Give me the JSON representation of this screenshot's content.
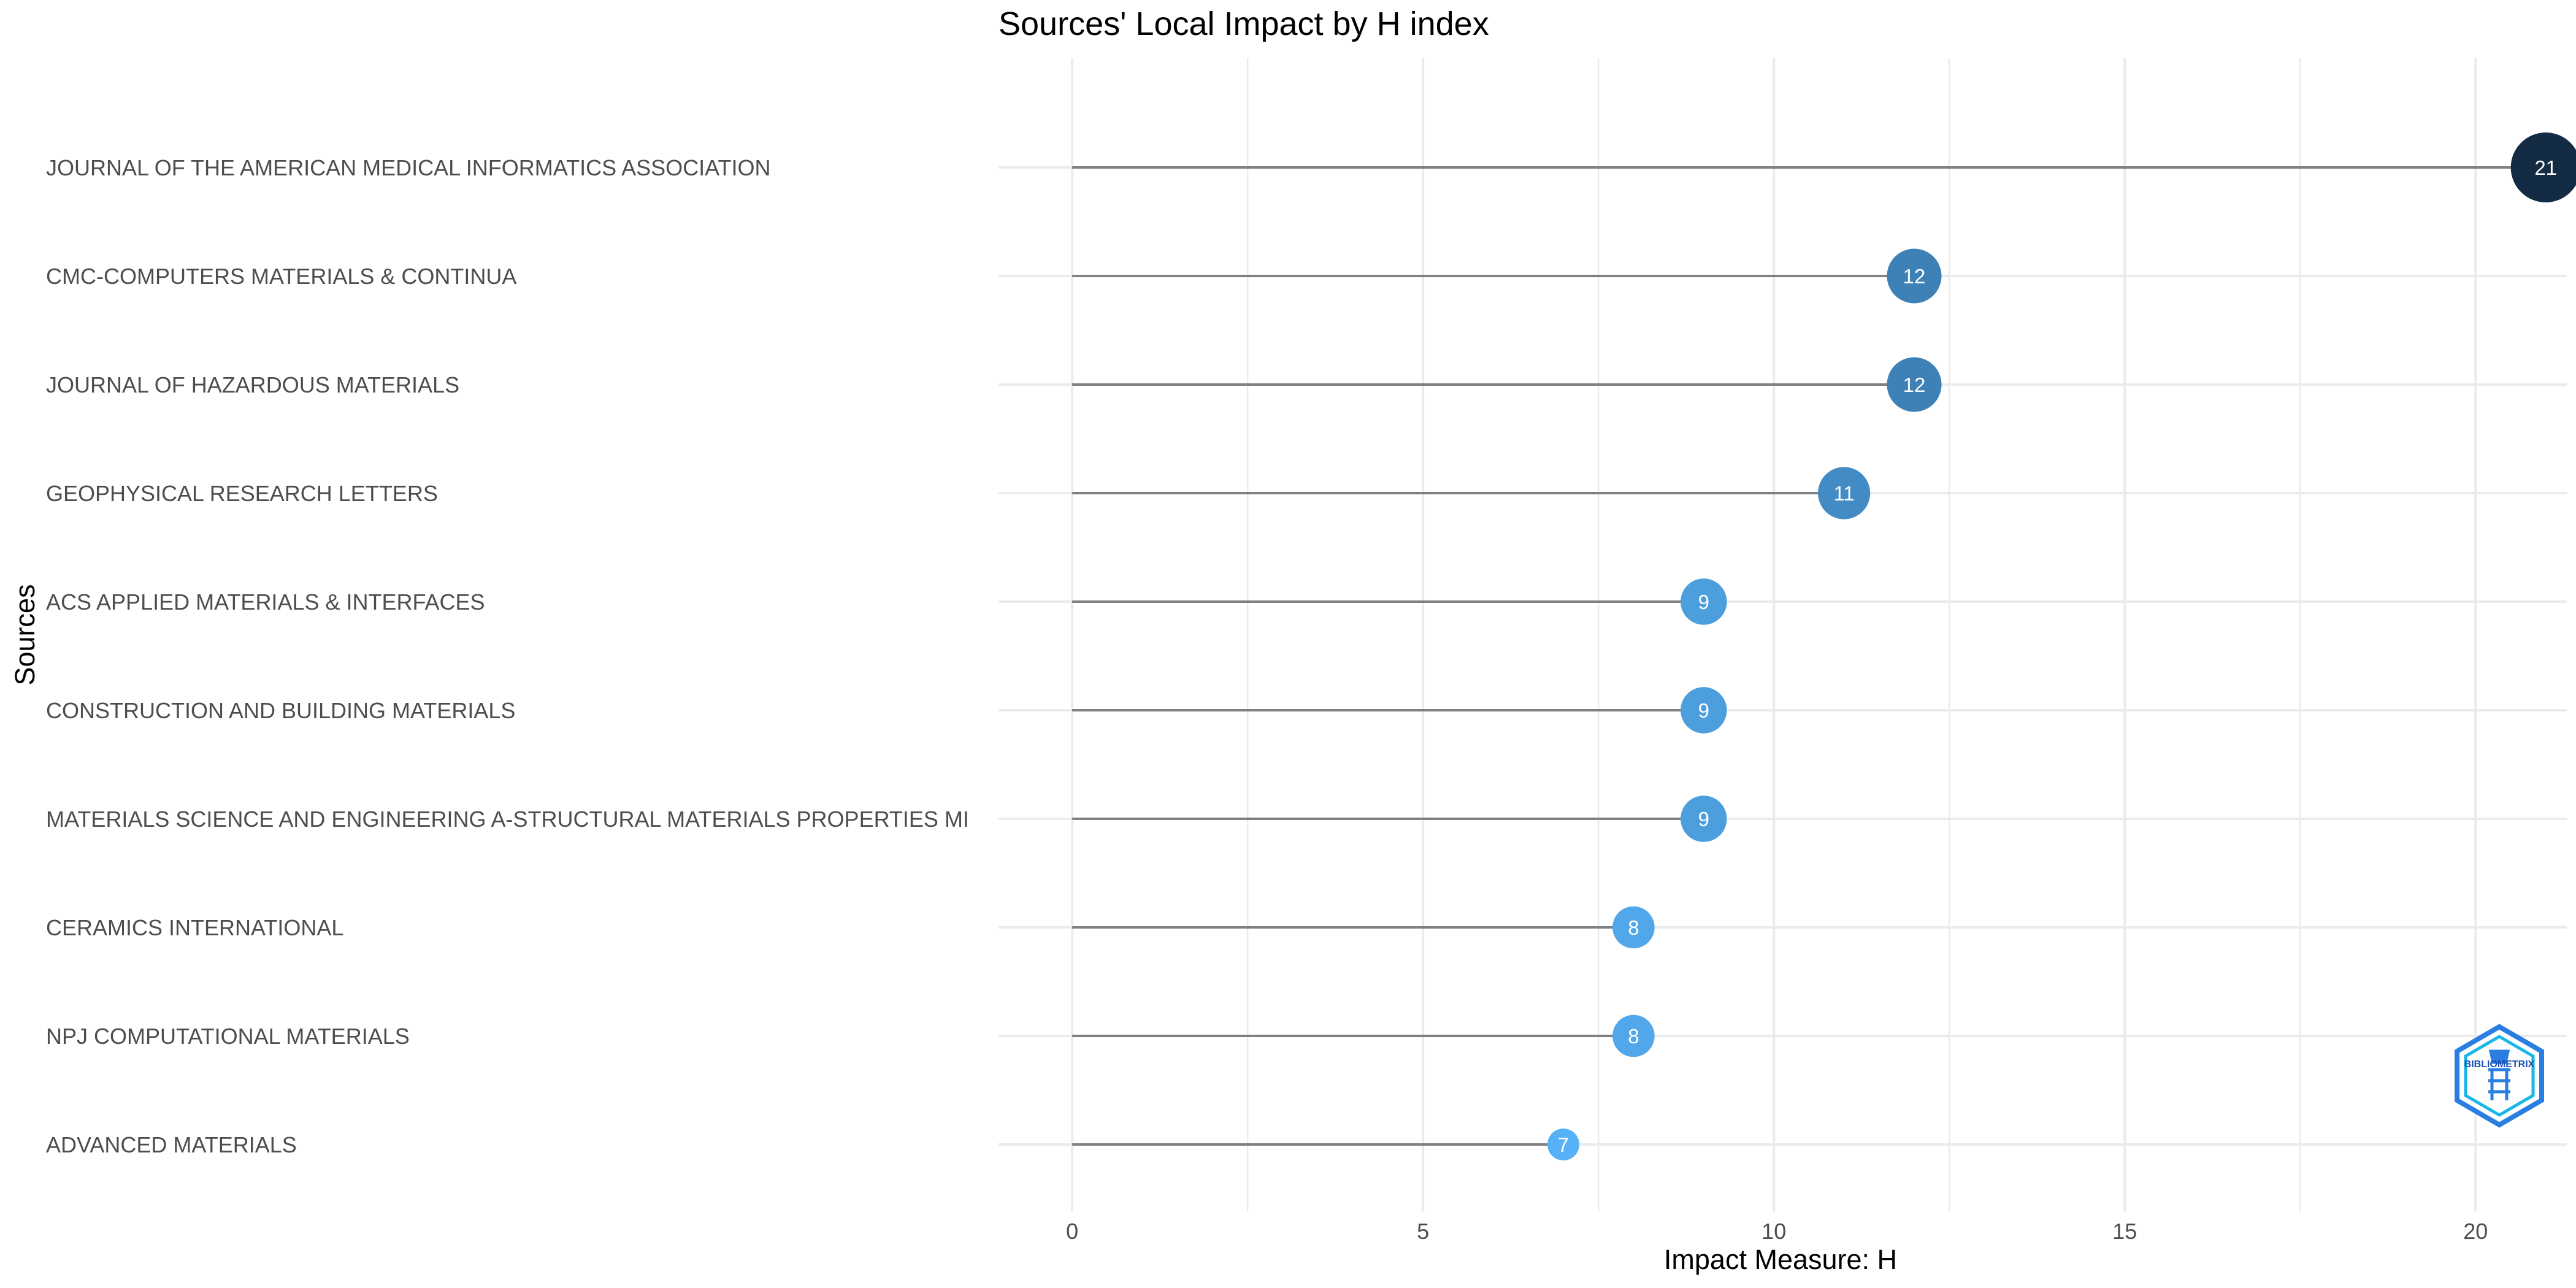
{
  "chart_data": {
    "type": "lollipop",
    "title": "Sources' Local Impact by H index",
    "xlabel": "Impact Measure: H",
    "ylabel": "Sources",
    "xlim": [
      -1.05,
      21.3
    ],
    "x_ticks": [
      0,
      5,
      10,
      15,
      20
    ],
    "grid": true,
    "categories": [
      "JOURNAL OF THE AMERICAN MEDICAL INFORMATICS ASSOCIATION",
      "CMC-COMPUTERS MATERIALS & CONTINUA",
      "JOURNAL OF HAZARDOUS MATERIALS",
      "GEOPHYSICAL RESEARCH LETTERS",
      "ACS APPLIED MATERIALS & INTERFACES",
      "CONSTRUCTION AND BUILDING MATERIALS",
      "MATERIALS SCIENCE AND ENGINEERING A-STRUCTURAL MATERIALS PROPERTIES MI",
      "CERAMICS INTERNATIONAL",
      "NPJ COMPUTATIONAL MATERIALS",
      "ADVANCED MATERIALS"
    ],
    "values": [
      21,
      12,
      12,
      11,
      9,
      9,
      9,
      8,
      8,
      7
    ],
    "colors": {
      "low": "#56B1F7",
      "high": "#132B43",
      "stem": "#808080",
      "grid": "#EBEBEB",
      "point_label": "#ffffff"
    }
  },
  "logo": {
    "text": "BIBLIOMETRIX"
  }
}
